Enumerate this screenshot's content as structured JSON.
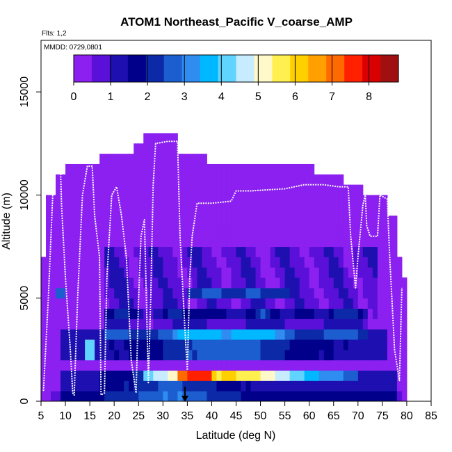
{
  "chart_data": {
    "type": "heatmap",
    "title": "ATOM1 Northeast_Pacific V_coarse_AMP",
    "subtitle_flights": "Flts: 1,2",
    "subtitle_dates": "MMDD: 0729,0801",
    "xlabel": "Latitude (deg N)",
    "ylabel": "Altitude (m)",
    "xlim": [
      5,
      85
    ],
    "ylim": [
      0,
      17500
    ],
    "x_ticks": [
      "5",
      "10",
      "15",
      "20",
      "25",
      "30",
      "35",
      "40",
      "45",
      "50",
      "55",
      "60",
      "65",
      "70",
      "75",
      "80",
      "85"
    ],
    "y_ticks": [
      "0",
      "5000",
      "10000",
      "15000"
    ],
    "colorbar": {
      "range": [
        0,
        8.8
      ],
      "ticks": [
        "0",
        "1",
        "2",
        "3",
        "4",
        "5",
        "6",
        "7",
        "8"
      ],
      "colors": [
        "#8b20f0",
        "#5a10d8",
        "#1e10b0",
        "#00008a",
        "#0c2aa8",
        "#1c5ed0",
        "#2f8cf0",
        "#00b8ff",
        "#60d4ff",
        "#c8ecff",
        "#fff8c8",
        "#fff050",
        "#ffd000",
        "#ffa000",
        "#ff6a00",
        "#ff2000",
        "#d80000",
        "#a01010"
      ]
    },
    "arrow_marker_lat": 35,
    "grid": false,
    "legend": "colorbar-top-inside"
  }
}
